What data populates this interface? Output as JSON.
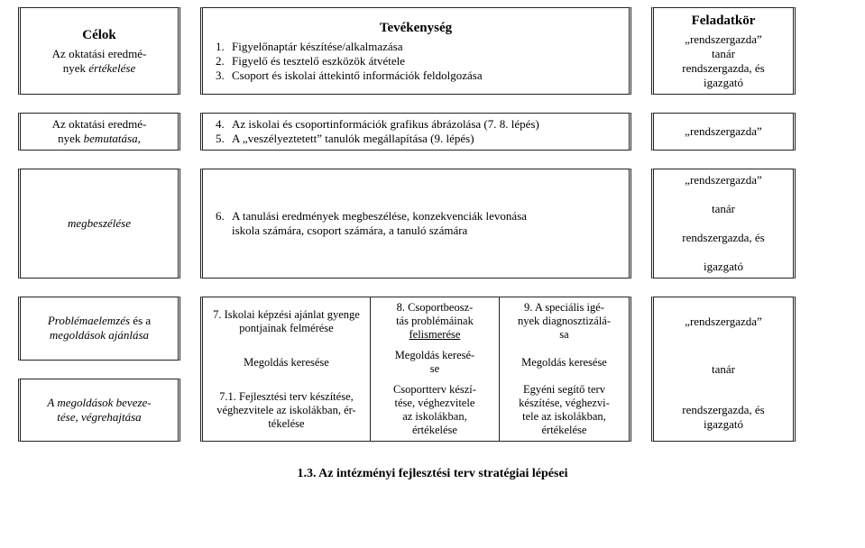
{
  "header": {
    "goals": "Célok",
    "activity": "Tevékenység",
    "role": "Feladatkör"
  },
  "row1": {
    "goal_l1": "Az oktatási eredmé-",
    "goal_l2": "nyek ",
    "goal_l3": "értékelése",
    "act_1_n": "1.",
    "act_1": "Figyelőnaptár készítése/alkalmazása",
    "act_2_n": "2.",
    "act_2": "Figyelő és tesztelő eszközök átvétele",
    "act_3_n": "3.",
    "act_3": "Csoport és iskolai áttekintő információk feldolgozása",
    "role_l1": "„rendszergazda”",
    "role_l2": "tanár",
    "role_l3": "rendszergazda, és",
    "role_l4": "igazgató"
  },
  "row2": {
    "goal_l1": "Az oktatási eredmé-",
    "goal_l2": "nyek ",
    "goal_l3": "bemutatása,",
    "act_4_n": "4.",
    "act_4": "Az iskolai és csoportinformációk grafikus ábrázolása (7. 8. lépés)",
    "act_5_n": "5.",
    "act_5": "A „veszélyeztetett” tanulók megállapítása (9. lépés)",
    "role": "„rendszergazda”"
  },
  "row3": {
    "goal": "megbeszélése",
    "act_6_n": "6.",
    "act_6_l1": "A tanulási eredmények megbeszélése, konzekvenciák levonása",
    "act_6_l2": "iskola számára, csoport számára, a tanuló számára",
    "role_l1": "„rendszergazda”",
    "role_l2": "tanár",
    "role_l3": "rendszergazda, és",
    "role_l4": "igazgató"
  },
  "row4": {
    "goal_top_l1": "Problémaelemzés",
    "goal_top_l2": " és a",
    "goal_top_l3": "megoldások ajánlása",
    "goal_bot_l1": "A megoldások beveze-",
    "goal_bot_l2": "tése, végrehajtása",
    "c11_l1": "7. Iskolai képzési ajánlat gyenge",
    "c11_l2": "pontjainak felmérése",
    "c12_l1": "8. Csoportbeosz-",
    "c12_l2": "tás problémáinak",
    "c12_l3": "felismerése",
    "c13_l1": "9. A speciális igé-",
    "c13_l2": "nyek diagnosztizálá-",
    "c13_l3": "sa",
    "c21": "Megoldás keresése",
    "c22_l1": "Megoldás keresé-",
    "c22_l2": "se",
    "c23": "Megoldás keresése",
    "c31_l1": "7.1. Fejlesztési terv készítése,",
    "c31_l2": "véghezvitele az iskolákban, ér-",
    "c31_l3": "tékelése",
    "c32_l1": "Csoportterv készí-",
    "c32_l2": "tése, véghezvitele",
    "c32_l3": "az iskolákban,",
    "c32_l4": "értékelése",
    "c33_l1": "Egyéni segítő terv",
    "c33_l2": "készítése, véghezvi-",
    "c33_l3": "tele az iskolákban,",
    "c33_l4": "értékelése",
    "role_1": "„rendszergazda”",
    "role_2": "tanár",
    "role_3_l1": "rendszergazda, és",
    "role_3_l2": "igazgató"
  },
  "heading": "1.3.    Az intézményi fejlesztési terv stratégiai lépései"
}
